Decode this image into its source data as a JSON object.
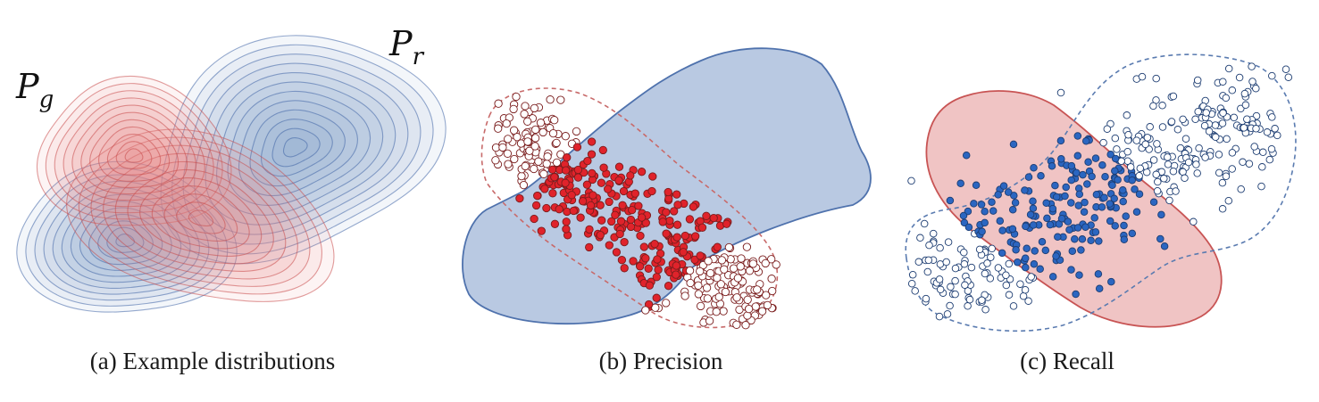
{
  "panel_a": {
    "caption": "(a) Example distributions",
    "label_generated": "P",
    "label_generated_sub": "g",
    "label_real": "P",
    "label_real_sub": "r"
  },
  "panel_b": {
    "caption": "(b) Precision"
  },
  "panel_c": {
    "caption": "(c) Recall"
  },
  "colors": {
    "real_fill": "#7f9cc9",
    "real_stroke": "#3f64a6",
    "gen_fill": "#e78a8a",
    "gen_stroke": "#c84a4a",
    "gen_point": "#e0232b",
    "real_point": "#2b66c1"
  }
}
